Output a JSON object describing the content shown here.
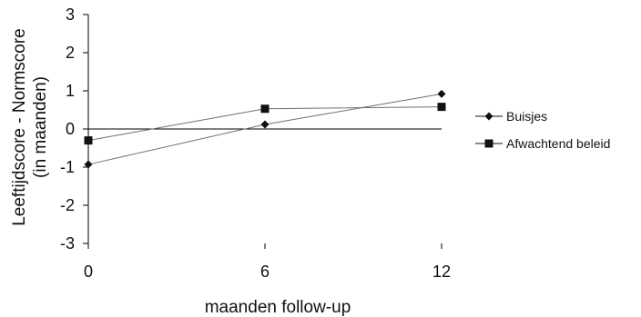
{
  "chart_data": {
    "type": "line",
    "title": "",
    "xlabel": "maanden follow-up",
    "ylabel_lines": [
      "Leeftijdscore - Normscore",
      "(in maanden)"
    ],
    "x": [
      0,
      6,
      12
    ],
    "x_ticks": [
      "0",
      "6",
      "12"
    ],
    "y_ticks": [
      "3",
      "2",
      "1",
      "0",
      "-1",
      "-2",
      "-3"
    ],
    "ylim": [
      -3,
      3
    ],
    "xlim": [
      0,
      12
    ],
    "grid": false,
    "legend_position": "right",
    "series": [
      {
        "name": "Buisjes",
        "marker": "diamond",
        "values": [
          -0.93,
          0.12,
          0.92
        ]
      },
      {
        "name": "Afwachtend beleid",
        "marker": "square",
        "values": [
          -0.3,
          0.53,
          0.58
        ]
      }
    ]
  },
  "colors": {
    "line": "#707070",
    "axis": "#000000",
    "marker": "#111111"
  }
}
